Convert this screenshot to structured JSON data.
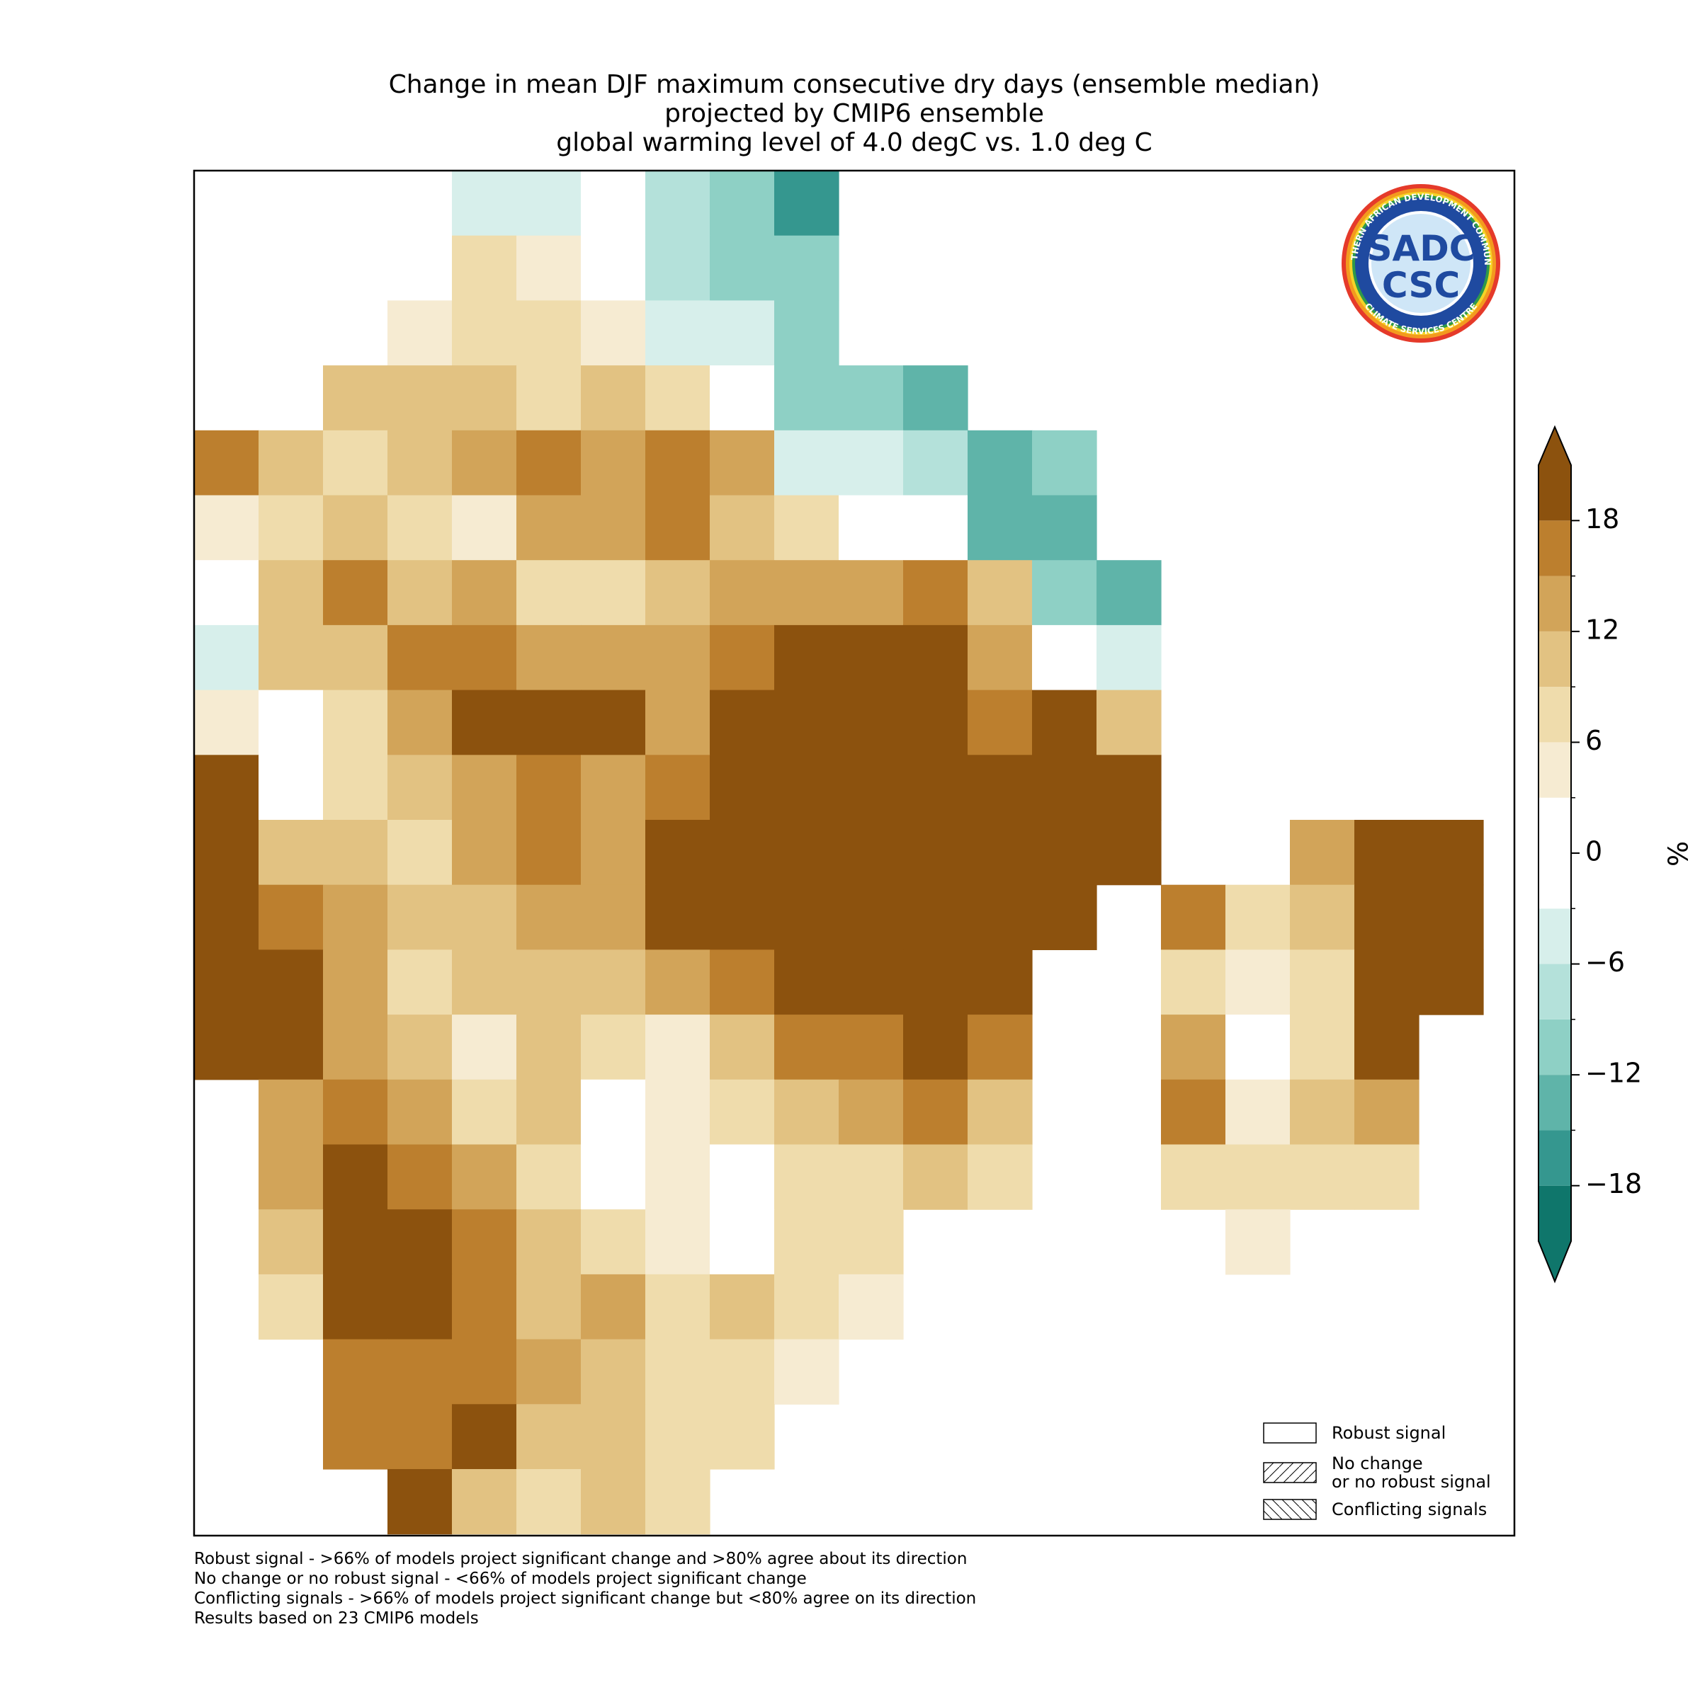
{
  "title": [
    "Change in mean DJF maximum consecutive dry days (ensemble median)",
    "projected by CMIP6 ensemble",
    "global warming level of 4.0 degC vs. 1.0 deg C"
  ],
  "map": {
    "grid": [
      [
        null,
        null,
        null,
        0,
        -4,
        -5,
        0,
        -8,
        -12,
        -17,
        null,
        null,
        null,
        null,
        null,
        null,
        null,
        null,
        null,
        null,
        null
      ],
      [
        null,
        null,
        null,
        -2,
        6,
        4,
        0,
        -9,
        -10,
        -12,
        null,
        null,
        null,
        null,
        null,
        null,
        null,
        null,
        null,
        null,
        null
      ],
      [
        null,
        null,
        null,
        3,
        7,
        8,
        5,
        -6,
        -5,
        -12,
        null,
        null,
        null,
        null,
        null,
        null,
        null,
        null,
        null,
        null,
        null
      ],
      [
        null,
        null,
        9,
        10,
        9,
        8,
        11,
        8,
        -3,
        -12,
        -12,
        -14,
        null,
        null,
        null,
        null,
        null,
        null,
        null,
        null,
        null
      ],
      [
        16,
        10,
        6,
        9,
        14,
        15,
        12,
        16,
        12,
        -4,
        -6,
        -8,
        -14,
        -12,
        null,
        null,
        null,
        null,
        null,
        null,
        null
      ],
      [
        5,
        8,
        9,
        7,
        5,
        12,
        13,
        17,
        10,
        8,
        0,
        0,
        -13,
        -14,
        null,
        null,
        null,
        null,
        null,
        null,
        null
      ],
      [
        -3,
        9,
        15,
        11,
        13,
        6,
        7,
        11,
        13,
        13,
        12,
        16,
        10,
        -12,
        -13,
        null,
        null,
        null,
        null,
        null,
        null
      ],
      [
        -6,
        10,
        9,
        15,
        16,
        12,
        12,
        13,
        15,
        18,
        20,
        20,
        12,
        -3,
        -5,
        null,
        null,
        null,
        null,
        null,
        null
      ],
      [
        5,
        2,
        6,
        13,
        19,
        19,
        18,
        12,
        18,
        20,
        20,
        20,
        17,
        19,
        10,
        null,
        null,
        null,
        null,
        null,
        null
      ],
      [
        18,
        0,
        6,
        10,
        13,
        16,
        13,
        15,
        18,
        20,
        20,
        20,
        20,
        20,
        20,
        null,
        null,
        null,
        null,
        null,
        null
      ],
      [
        20,
        11,
        9,
        6,
        12,
        16,
        13,
        18,
        20,
        20,
        20,
        20,
        20,
        20,
        20,
        null,
        null,
        13,
        20,
        20,
        null
      ],
      [
        20,
        16,
        12,
        9,
        9,
        12,
        13,
        18,
        20,
        20,
        20,
        20,
        20,
        20,
        null,
        16,
        6,
        10,
        20,
        20,
        null
      ],
      [
        20,
        20,
        12,
        8,
        9,
        11,
        10,
        13,
        17,
        18,
        20,
        20,
        20,
        null,
        null,
        6,
        3,
        6,
        20,
        20,
        null
      ],
      [
        20,
        20,
        13,
        9,
        5,
        9,
        6,
        3,
        10,
        17,
        16,
        18,
        16,
        null,
        null,
        12,
        2,
        6,
        20,
        null,
        null
      ],
      [
        null,
        12,
        15,
        12,
        8,
        9,
        2,
        3,
        6,
        10,
        12,
        15,
        11,
        null,
        null,
        15,
        3,
        9,
        12,
        null,
        null
      ],
      [
        null,
        12,
        18,
        16,
        12,
        7,
        2,
        5,
        2,
        7,
        8,
        9,
        6,
        null,
        null,
        6,
        7,
        7,
        6,
        null,
        null
      ],
      [
        null,
        11,
        20,
        18,
        16,
        9,
        8,
        3,
        2,
        7,
        8,
        null,
        null,
        null,
        null,
        null,
        5,
        null,
        null,
        null,
        null
      ],
      [
        null,
        7,
        18,
        18,
        17,
        11,
        12,
        6,
        10,
        6,
        5,
        null,
        null,
        null,
        null,
        null,
        null,
        null,
        null,
        null,
        null
      ],
      [
        null,
        null,
        16,
        17,
        15,
        12,
        10,
        6,
        6,
        3,
        null,
        null,
        null,
        null,
        null,
        null,
        null,
        null,
        null,
        null,
        null
      ],
      [
        null,
        null,
        17,
        16,
        18,
        11,
        9,
        6,
        6,
        null,
        null,
        null,
        null,
        null,
        null,
        null,
        null,
        null,
        null,
        null,
        null
      ],
      [
        null,
        null,
        null,
        18,
        11,
        7,
        10,
        6,
        null,
        null,
        null,
        null,
        null,
        null,
        null,
        null,
        null,
        null,
        null,
        null,
        null
      ]
    ]
  },
  "colorbar": {
    "levels": [
      -21,
      -18,
      -15,
      -12,
      -9,
      -6,
      -3,
      3,
      6,
      9,
      12,
      15,
      18,
      21
    ],
    "colors": [
      "#0f766b",
      "#35978f",
      "#5fb4a9",
      "#8ed0c5",
      "#b4e1da",
      "#d7efeb",
      "#ffffff",
      "#f6ebd2",
      "#efdcac",
      "#e2c282",
      "#d2a459",
      "#bc7f2e",
      "#8c520e"
    ],
    "extend": "both",
    "ticks": [
      {
        "value": -18,
        "label": "−18"
      },
      {
        "value": -12,
        "label": "−12"
      },
      {
        "value": -6,
        "label": "−6"
      },
      0,
      6,
      12,
      18
    ],
    "label": "%"
  },
  "legend": [
    {
      "label": [
        "Robust signal"
      ],
      "hatch": "none"
    },
    {
      "label": [
        "No change",
        "or no robust signal"
      ],
      "hatch": "forward"
    },
    {
      "label": [
        "Conflicting signals"
      ],
      "hatch": "back"
    }
  ],
  "notes": [
    "Robust signal - >66% of models project significant change and >80% agree about its direction",
    "No change or no robust signal - <66% of models project significant change",
    "Conflicting signals - >66% of models project significant change but <80% agree on its direction",
    "Results based on 23 CMIP6 models"
  ],
  "logo": {
    "outer_text": "SOUTHERN AFRICAN DEVELOPMENT COMMUNITY",
    "inner_text": "CLIMATE SERVICES CENTRE",
    "top": "SADC",
    "bottom": "CSC"
  }
}
